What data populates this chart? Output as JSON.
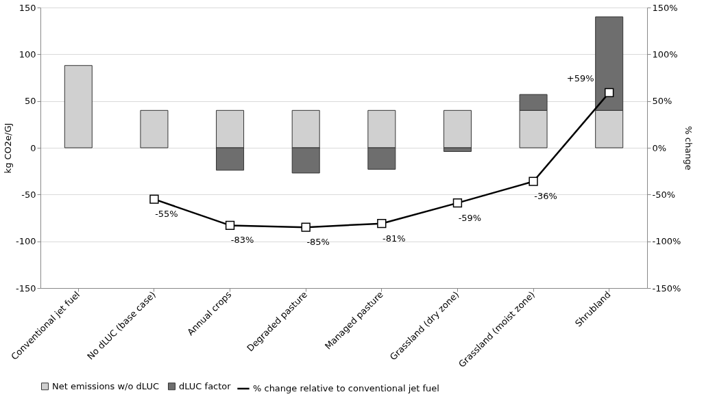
{
  "chart_data": {
    "type": "bar",
    "stacked": true,
    "ylabel": "kg CO2e/GJ",
    "y2label": "% change",
    "categories": [
      "Conventional jet fuel",
      "No dLUC (base case)",
      "Annual crops",
      "Degraded pasture",
      "Managed pasture",
      "Grassland (dry zone)",
      "Grassland (moist zone)",
      "Shrubland"
    ],
    "series": [
      {
        "name": "Net emissions w/o dLUC",
        "color": "#d0d0d0",
        "values": [
          88,
          40,
          40,
          40,
          40,
          40,
          40,
          40
        ]
      },
      {
        "name": "dLUC factor",
        "color": "#6e6e6e",
        "values": [
          null,
          null,
          -24,
          -27,
          -23,
          -4,
          17,
          100
        ]
      },
      {
        "name": "% change relative to conventional jet fuel",
        "type": "line",
        "axis": "y2",
        "color": "#000000",
        "marker": "square",
        "values": [
          null,
          -55,
          -83,
          -85,
          -81,
          -59,
          -36,
          59
        ],
        "value_labels": [
          null,
          "-55%",
          "-83%",
          "-85%",
          "-81%",
          "-59%",
          "-36%",
          "+59%"
        ]
      }
    ],
    "ylim": [
      -150,
      150
    ],
    "yticks": [
      -150,
      -100,
      -50,
      0,
      50,
      100,
      150
    ],
    "y2lim": [
      -150,
      150
    ],
    "y2ticks": [
      {
        "value": -150,
        "label": "-150%"
      },
      {
        "value": -100,
        "label": "-100%"
      },
      {
        "value": -50,
        "label": "-50%"
      },
      {
        "value": 0,
        "label": "0%"
      },
      {
        "value": 50,
        "label": "50%"
      },
      {
        "value": 100,
        "label": "100%"
      },
      {
        "value": 150,
        "label": "150%"
      }
    ],
    "grid": "y",
    "legend": "bottom"
  }
}
